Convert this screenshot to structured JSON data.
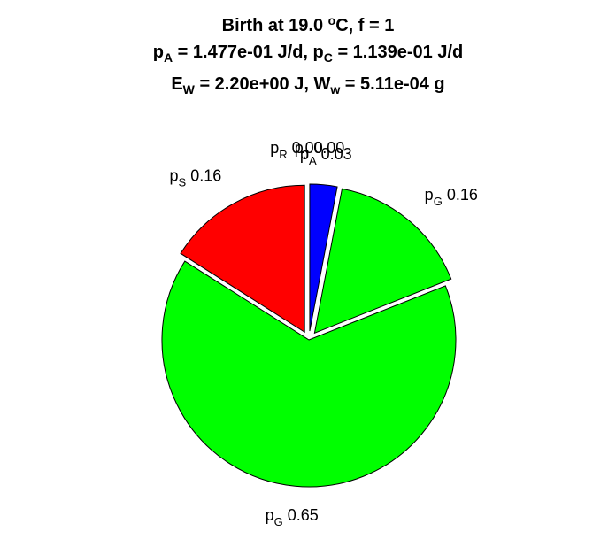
{
  "chart_data": {
    "type": "pie",
    "title": {
      "line1": {
        "prefix": "Birth at 19.0 ",
        "degree_mark": "o",
        "suffix": "C, f = 1"
      },
      "line2": [
        {
          "base": "p",
          "sub": "A",
          "rest": " = 1.477e-01 J/d, "
        },
        {
          "base": "p",
          "sub": "C",
          "rest": " = 1.139e-01 J/d"
        }
      ],
      "line3": [
        {
          "base": "E",
          "sub": "W",
          "rest": " = 2.20e+00 J, "
        },
        {
          "base": "W",
          "sub": "w",
          "rest": " = 5.11e-04 g"
        }
      ]
    },
    "slices": [
      {
        "name": "p",
        "sub": "A",
        "label_value": "0.03",
        "value": 0.03,
        "color": "#0000ff",
        "exploded": true
      },
      {
        "name": "p",
        "sub": "G",
        "label_value": "0.16",
        "value": 0.16,
        "color": "#00ff00",
        "exploded": true
      },
      {
        "name": "p",
        "sub": "G",
        "label_value": "0.65",
        "value": 0.65,
        "color": "#00ff00",
        "exploded": false
      },
      {
        "name": "p",
        "sub": "S",
        "label_value": "0.16",
        "value": 0.16,
        "color": "#ff0000",
        "exploded": true
      },
      {
        "name": "p",
        "sub": "R",
        "label_value": "0.00",
        "value": 0.0,
        "color": "#000000",
        "exploded": false
      },
      {
        "name": "p",
        "sub": "J",
        "label_value": "0.00",
        "value": 0.0,
        "color": "#000000",
        "exploded": false
      }
    ],
    "start_angle": "12 o'clock",
    "direction": "clockwise",
    "legend": "none"
  }
}
